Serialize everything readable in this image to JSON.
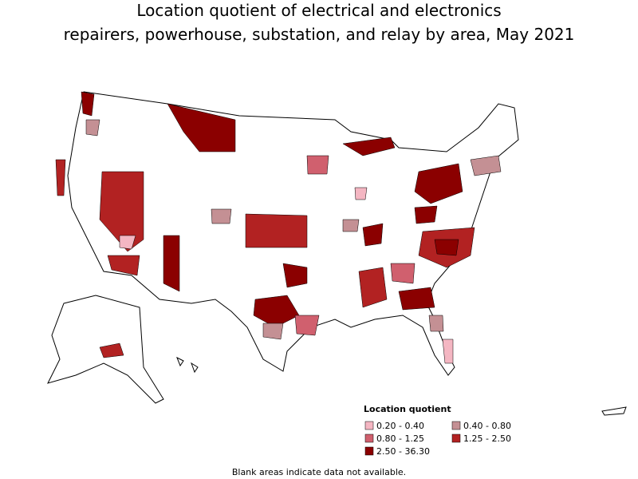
{
  "header": {
    "title": [
      "Location quotient of electrical and electronics",
      "repairers, powerhouse, substation, and relay by area, May 2021"
    ]
  },
  "legend": {
    "title": "Location quotient",
    "items": [
      {
        "label": "0.20 - 0.40",
        "color": "#f4b6c2"
      },
      {
        "label": "0.40 - 0.80",
        "color": "#c49094"
      },
      {
        "label": "0.80 - 1.25",
        "color": "#d0606e"
      },
      {
        "label": "1.25 - 2.50",
        "color": "#b22222"
      },
      {
        "label": "2.50 - 36.30",
        "color": "#8b0000"
      }
    ]
  },
  "footnote": "Blank areas indicate data not available."
}
